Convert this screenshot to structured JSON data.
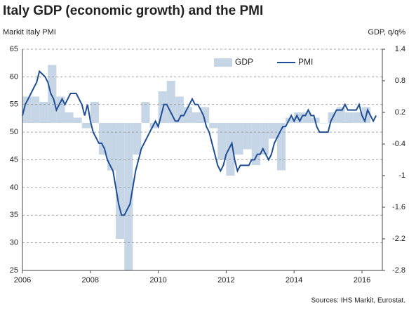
{
  "chart_data": {
    "type": "combo",
    "title": "Italy  GDP (economic growth)  and the PMI",
    "y_label": "Markit Italy PMI",
    "y2_label": "GDP, q/q%",
    "source": "Sources: IHS Markit, Eurostat.",
    "xlim": [
      2006,
      2016.6
    ],
    "xticks": [
      2006,
      2008,
      2010,
      2012,
      2014,
      2016
    ],
    "ylim": [
      25,
      65
    ],
    "yticks": [
      25,
      30,
      35,
      40,
      45,
      50,
      55,
      60,
      65
    ],
    "y2lim": [
      -2.8,
      1.4
    ],
    "y2ticks": [
      -2.8,
      -2.2,
      -1.6,
      -1.0,
      -0.4,
      0.2,
      0.8,
      1.4
    ],
    "grid": true,
    "legend": "top",
    "series": [
      {
        "name": "GDP",
        "type": "bar",
        "axis": "y2",
        "color": "#c6d6e6",
        "x": [
          2006.125,
          2006.375,
          2006.625,
          2006.875,
          2007.125,
          2007.375,
          2007.625,
          2007.875,
          2008.125,
          2008.375,
          2008.625,
          2008.875,
          2009.125,
          2009.375,
          2009.625,
          2009.875,
          2010.125,
          2010.375,
          2010.625,
          2010.875,
          2011.125,
          2011.375,
          2011.625,
          2011.875,
          2012.125,
          2012.375,
          2012.625,
          2012.875,
          2013.125,
          2013.375,
          2013.625,
          2013.875,
          2014.125,
          2014.375,
          2014.625,
          2014.875,
          2015.125,
          2015.375,
          2015.625,
          2015.875,
          2016.125
        ],
        "values": [
          0.5,
          0.5,
          0.4,
          1.1,
          0.5,
          0.2,
          0.1,
          -0.1,
          0.4,
          -0.6,
          -0.9,
          -2.2,
          -2.8,
          -0.6,
          0.4,
          -0.1,
          0.6,
          0.8,
          0.5,
          0.3,
          0.2,
          0.3,
          -0.1,
          -0.7,
          -1.0,
          -0.6,
          -0.5,
          -0.8,
          -0.6,
          -0.3,
          -0.9,
          0.1,
          0.2,
          0.2,
          0.1,
          0.0,
          0.2,
          0.3,
          0.2,
          0.2,
          0.3
        ]
      },
      {
        "name": "PMI",
        "type": "line",
        "axis": "y",
        "color": "#1f4e96",
        "x": [
          2006,
          2006.083,
          2006.167,
          2006.25,
          2006.333,
          2006.417,
          2006.5,
          2006.583,
          2006.667,
          2006.75,
          2006.833,
          2006.917,
          2007,
          2007.083,
          2007.167,
          2007.25,
          2007.333,
          2007.417,
          2007.5,
          2007.583,
          2007.667,
          2007.75,
          2007.833,
          2007.917,
          2008,
          2008.083,
          2008.167,
          2008.25,
          2008.333,
          2008.417,
          2008.5,
          2008.583,
          2008.667,
          2008.75,
          2008.833,
          2008.917,
          2009,
          2009.083,
          2009.167,
          2009.25,
          2009.333,
          2009.417,
          2009.5,
          2009.583,
          2009.667,
          2009.75,
          2009.833,
          2009.917,
          2010,
          2010.083,
          2010.167,
          2010.25,
          2010.333,
          2010.417,
          2010.5,
          2010.583,
          2010.667,
          2010.75,
          2010.833,
          2010.917,
          2011,
          2011.083,
          2011.167,
          2011.25,
          2011.333,
          2011.417,
          2011.5,
          2011.583,
          2011.667,
          2011.75,
          2011.833,
          2011.917,
          2012,
          2012.083,
          2012.167,
          2012.25,
          2012.333,
          2012.417,
          2012.5,
          2012.583,
          2012.667,
          2012.75,
          2012.833,
          2012.917,
          2013,
          2013.083,
          2013.167,
          2013.25,
          2013.333,
          2013.417,
          2013.5,
          2013.583,
          2013.667,
          2013.75,
          2013.833,
          2013.917,
          2014,
          2014.083,
          2014.167,
          2014.25,
          2014.333,
          2014.417,
          2014.5,
          2014.583,
          2014.667,
          2014.75,
          2014.833,
          2014.917,
          2015,
          2015.083,
          2015.167,
          2015.25,
          2015.333,
          2015.417,
          2015.5,
          2015.583,
          2015.667,
          2015.75,
          2015.833,
          2015.917,
          2016,
          2016.083,
          2016.167,
          2016.25,
          2016.333,
          2016.417
        ],
        "values": [
          53,
          55,
          56,
          57,
          58,
          59,
          61,
          60.5,
          60,
          59,
          57,
          56,
          54,
          55,
          56,
          55,
          56,
          57,
          57,
          57,
          56,
          55,
          53,
          55,
          52,
          50,
          49,
          48,
          48,
          47,
          45,
          44,
          43,
          40,
          37,
          35,
          35,
          36,
          37,
          40,
          43,
          45,
          47,
          48,
          49,
          50,
          51,
          52,
          51,
          53,
          55,
          55,
          54,
          53,
          52,
          52,
          53,
          53,
          54,
          55,
          56,
          55,
          55,
          54,
          53,
          51,
          50,
          48,
          46,
          44,
          43,
          44,
          46,
          47,
          48,
          45,
          43,
          44,
          44,
          44,
          44,
          45,
          45,
          46,
          46,
          47,
          46,
          45,
          46,
          48,
          49,
          50,
          51,
          51,
          52,
          53,
          52,
          53,
          52,
          53,
          53,
          54,
          53,
          53,
          51,
          50,
          50,
          50,
          50,
          52,
          53,
          54,
          54,
          54,
          55,
          54,
          54,
          54,
          54,
          55,
          53,
          52,
          54,
          53,
          52,
          53
        ]
      }
    ]
  }
}
